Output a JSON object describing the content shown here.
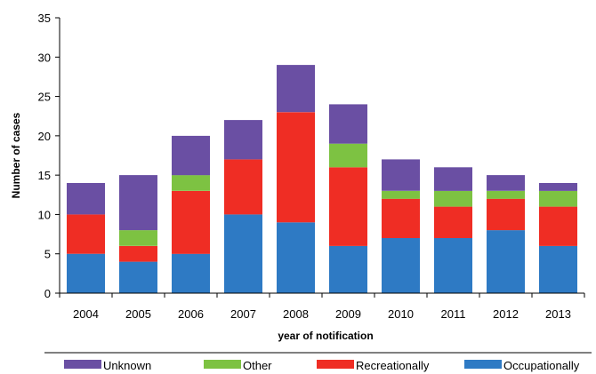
{
  "chart_data": {
    "type": "bar",
    "stacked": true,
    "categories": [
      "2004",
      "2005",
      "2006",
      "2007",
      "2008",
      "2009",
      "2010",
      "2011",
      "2012",
      "2013"
    ],
    "series": [
      {
        "name": "Occupationally",
        "color": "#2e7ac4",
        "values": [
          5,
          4,
          5,
          10,
          9,
          6,
          7,
          7,
          8,
          6
        ]
      },
      {
        "name": "Recreationally",
        "color": "#ef2d24",
        "values": [
          5,
          2,
          8,
          7,
          14,
          10,
          5,
          4,
          4,
          5
        ]
      },
      {
        "name": "Other",
        "color": "#7dc242",
        "values": [
          0,
          2,
          2,
          0,
          0,
          3,
          1,
          2,
          1,
          2
        ]
      },
      {
        "name": "Unknown",
        "color": "#6a4fa3",
        "values": [
          4,
          7,
          5,
          5,
          6,
          5,
          4,
          3,
          2,
          1
        ]
      }
    ],
    "legend_order": [
      "Unknown",
      "Other",
      "Recreationally",
      "Occupationally"
    ],
    "legend_position": "bottom",
    "xlabel": "year of notification",
    "ylabel": "Number of cases",
    "ylim": [
      0,
      35
    ],
    "yticks": [
      0,
      5,
      10,
      15,
      20,
      25,
      30,
      35
    ],
    "grid": false
  }
}
